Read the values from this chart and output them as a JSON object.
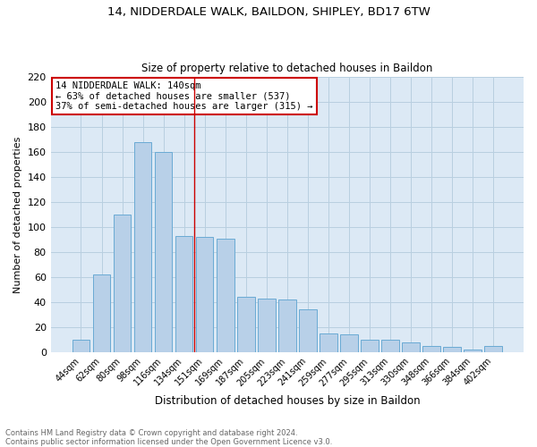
{
  "title1": "14, NIDDERDALE WALK, BAILDON, SHIPLEY, BD17 6TW",
  "title2": "Size of property relative to detached houses in Baildon",
  "xlabel": "Distribution of detached houses by size in Baildon",
  "ylabel": "Number of detached properties",
  "categories": [
    "44sqm",
    "62sqm",
    "80sqm",
    "98sqm",
    "116sqm",
    "134sqm",
    "151sqm",
    "169sqm",
    "187sqm",
    "205sqm",
    "223sqm",
    "241sqm",
    "259sqm",
    "277sqm",
    "295sqm",
    "313sqm",
    "330sqm",
    "348sqm",
    "366sqm",
    "384sqm",
    "402sqm"
  ],
  "values": [
    10,
    62,
    110,
    168,
    160,
    93,
    92,
    91,
    44,
    43,
    42,
    34,
    15,
    14,
    10,
    10,
    8,
    5,
    4,
    2,
    5
  ],
  "bar_color": "#b8d0e8",
  "bar_edge_color": "#6aaad4",
  "red_line_x": 5.5,
  "annotation_text": "14 NIDDERDALE WALK: 140sqm\n← 63% of detached houses are smaller (537)\n37% of semi-detached houses are larger (315) →",
  "annotation_box_color": "#ffffff",
  "annotation_box_edge": "#cc0000",
  "footnote": "Contains HM Land Registry data © Crown copyright and database right 2024.\nContains public sector information licensed under the Open Government Licence v3.0.",
  "bg_color": "#ffffff",
  "plot_bg_color": "#dce9f5",
  "grid_color": "#b8cfe0",
  "ylim": [
    0,
    220
  ],
  "title1_fontsize": 9,
  "title2_fontsize": 8.5
}
